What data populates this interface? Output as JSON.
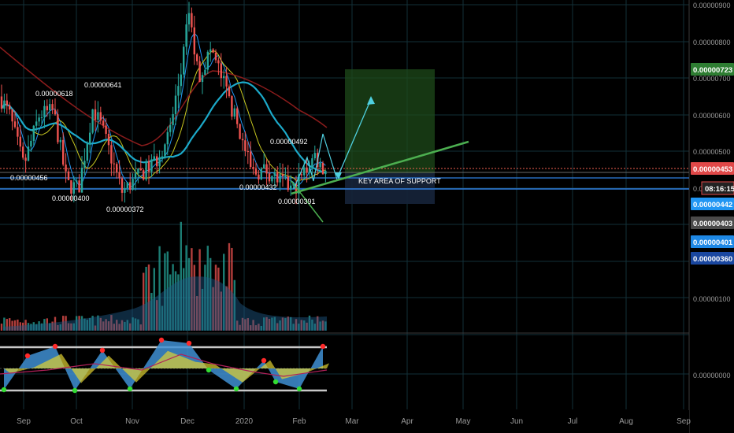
{
  "chart_data": {
    "type": "candlestick",
    "title": "",
    "x_axis": {
      "labels": [
        "Sep",
        "Oct",
        "Nov",
        "Dec",
        "2020",
        "Feb",
        "Mar",
        "Apr",
        "May",
        "Jun",
        "Jul",
        "Aug",
        "Sep"
      ]
    },
    "price_axis": {
      "labels": [
        "0.00000900",
        "0.00000800",
        "0.00000700",
        "0.00000600",
        "0.00000500",
        "0.00000400"
      ],
      "last_price": "0.00000453",
      "countdown": "08:16:15",
      "badges": [
        {
          "text": "0.00000723",
          "color": "#2e7d32"
        },
        {
          "text": "0.00000442",
          "color": "#2196f3"
        },
        {
          "text": "0.00000403",
          "color": "#4a4a4a"
        },
        {
          "text": "0.00000401",
          "color": "#1e88e5"
        },
        {
          "text": "0.00000360",
          "color": "#1a47a0"
        }
      ]
    },
    "volume_axis": {
      "labels": [
        "0.00000100"
      ]
    },
    "oscillator_axis": {
      "labels": [
        "0.00000000"
      ]
    },
    "annotations": [
      {
        "text": "0.00000618",
        "x": "Sep",
        "y": 6.18e-06
      },
      {
        "text": "0.00000641",
        "x": "Oct",
        "y": 6.41e-06
      },
      {
        "text": "0.00000456",
        "x": "Sep",
        "y": 4.56e-06
      },
      {
        "text": "0.00000400",
        "x": "Oct",
        "y": 4e-06
      },
      {
        "text": "0.00000372",
        "x": "Nov",
        "y": 3.72e-06
      },
      {
        "text": "0.00000432",
        "x": "2020",
        "y": 4.32e-06
      },
      {
        "text": "0.00000492",
        "x": "2020",
        "y": 4.92e-06
      },
      {
        "text": "0.00000391",
        "x": "Feb",
        "y": 3.91e-06
      },
      {
        "text": "KEY AREA OF SUPPORT",
        "x": "Feb",
        "y": 4.2e-06
      }
    ],
    "series": [
      {
        "name": "Price",
        "color": "#26a69a"
      },
      {
        "name": "Volume",
        "color": "#26a69a"
      }
    ],
    "grid": true
  }
}
